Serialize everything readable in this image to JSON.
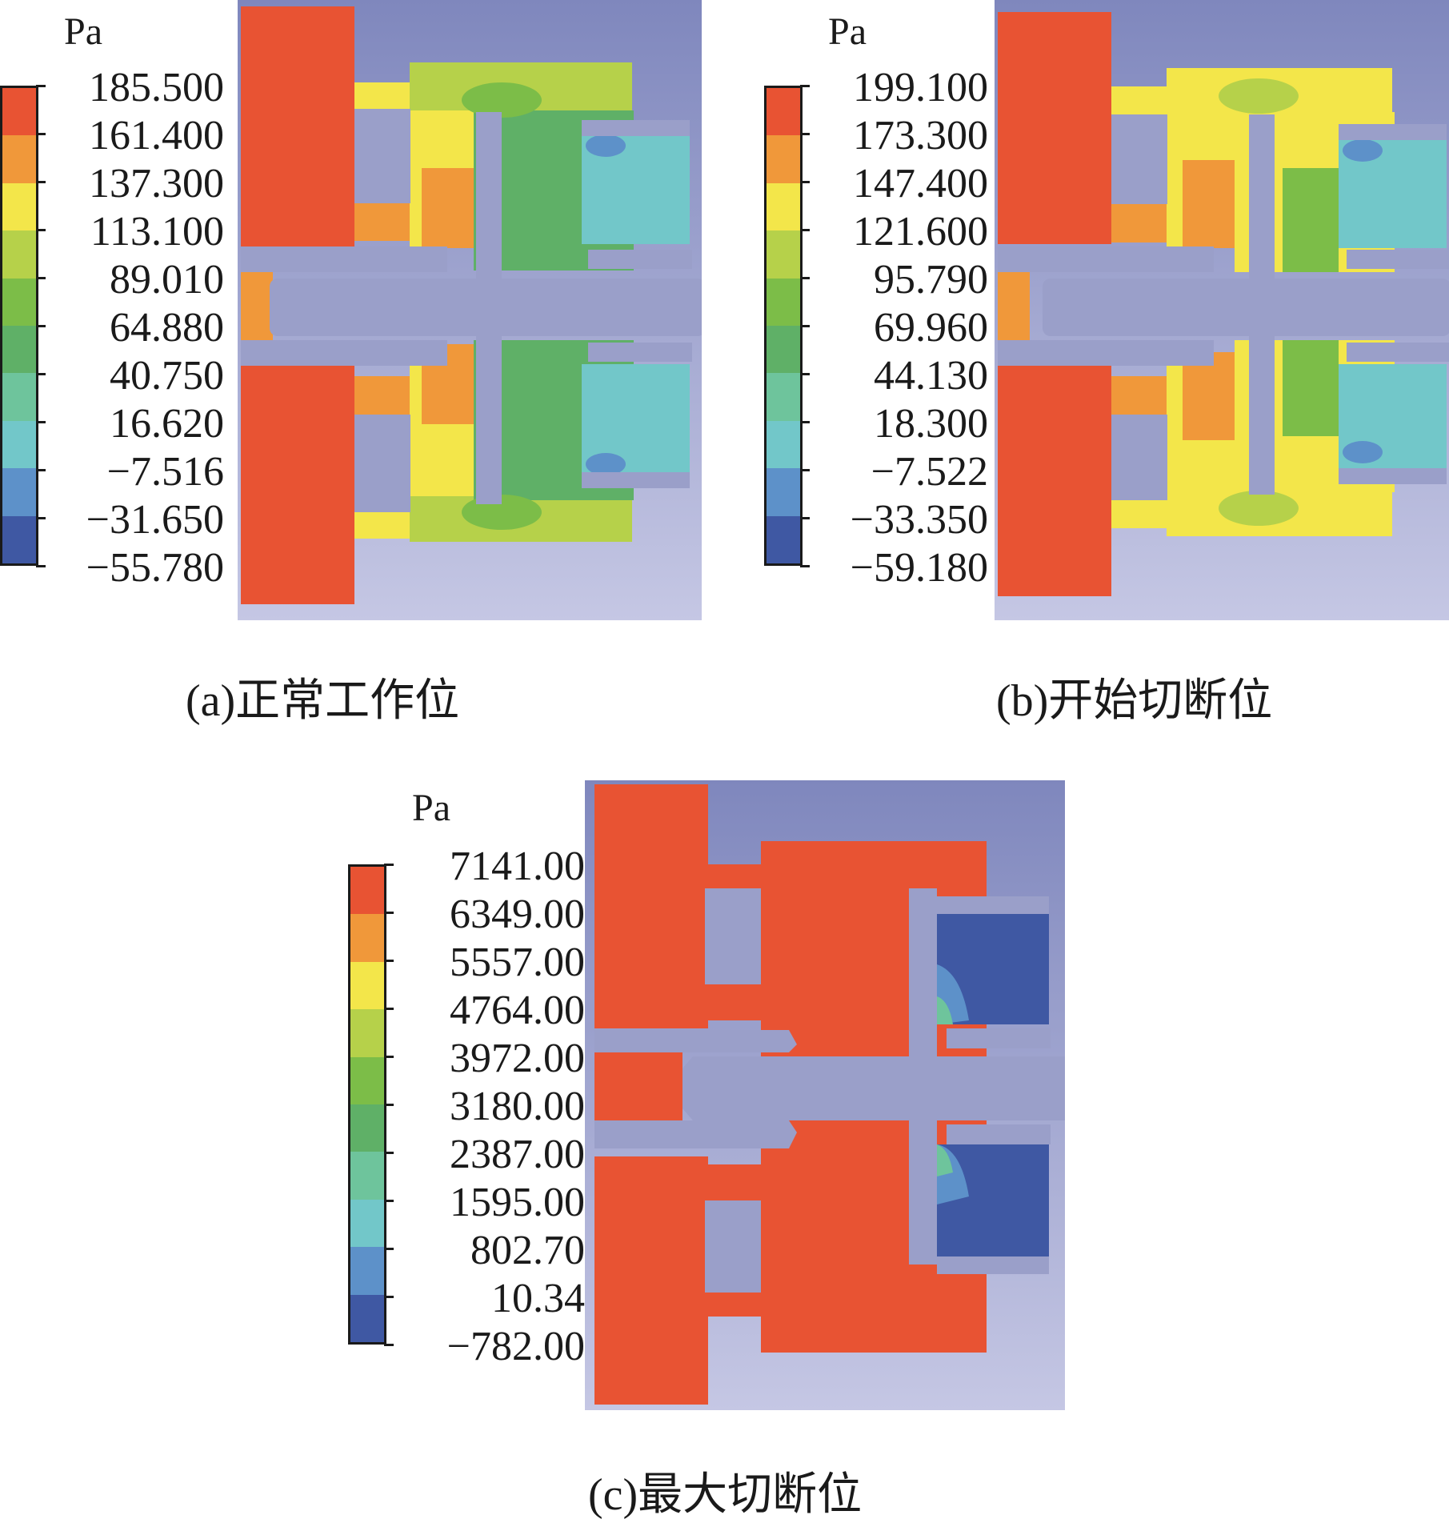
{
  "panels": [
    {
      "unit": "Pa",
      "levels": [
        "185.500",
        "161.400",
        "137.300",
        "113.100",
        "89.010",
        "64.880",
        "40.750",
        "16.620",
        "−7.516",
        "−31.650",
        "−55.780"
      ],
      "caption": "(a)正常工作位"
    },
    {
      "unit": "Pa",
      "levels": [
        "199.100",
        "173.300",
        "147.400",
        "121.600",
        "95.790",
        "69.960",
        "44.130",
        "18.300",
        "−7.522",
        "−33.350",
        "−59.180"
      ],
      "caption": "(b)开始切断位"
    },
    {
      "unit": "Pa",
      "levels": [
        "7141.00",
        "6349.00",
        "5557.00",
        "4764.00",
        "3972.00",
        "3180.00",
        "2387.00",
        "1595.00",
        "802.70",
        "10.34",
        "−782.00"
      ],
      "caption": "(c)最大切断位"
    }
  ],
  "palette": [
    "#e85333",
    "#f0983a",
    "#f3e64a",
    "#b6d14a",
    "#7cbd48",
    "#5fb067",
    "#6ec49c",
    "#72c7c9",
    "#5d91c9",
    "#3f58a3"
  ],
  "colors": {
    "solid": "#9a9fc9",
    "background_top": "#7f87bd",
    "background_bottom": "#c5c7e4"
  }
}
